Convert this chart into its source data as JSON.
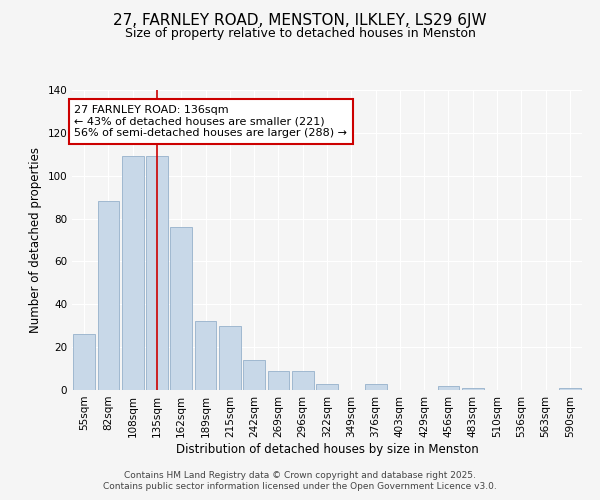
{
  "title": "27, FARNLEY ROAD, MENSTON, ILKLEY, LS29 6JW",
  "subtitle": "Size of property relative to detached houses in Menston",
  "xlabel": "Distribution of detached houses by size in Menston",
  "ylabel": "Number of detached properties",
  "bar_color": "#c8d8e8",
  "bar_edgecolor": "#a0b8d0",
  "categories": [
    "55sqm",
    "82sqm",
    "108sqm",
    "135sqm",
    "162sqm",
    "189sqm",
    "215sqm",
    "242sqm",
    "269sqm",
    "296sqm",
    "322sqm",
    "349sqm",
    "376sqm",
    "403sqm",
    "429sqm",
    "456sqm",
    "483sqm",
    "510sqm",
    "536sqm",
    "563sqm",
    "590sqm"
  ],
  "values": [
    26,
    88,
    109,
    109,
    76,
    32,
    30,
    14,
    9,
    9,
    3,
    0,
    3,
    0,
    0,
    2,
    1,
    0,
    0,
    0,
    1
  ],
  "vline_bar_index": 3,
  "vline_color": "#cc0000",
  "annotation_text": "27 FARNLEY ROAD: 136sqm\n← 43% of detached houses are smaller (221)\n56% of semi-detached houses are larger (288) →",
  "annotation_box_edgecolor": "#cc0000",
  "ylim": [
    0,
    140
  ],
  "yticks": [
    0,
    20,
    40,
    60,
    80,
    100,
    120,
    140
  ],
  "footer1": "Contains HM Land Registry data © Crown copyright and database right 2025.",
  "footer2": "Contains public sector information licensed under the Open Government Licence v3.0.",
  "background_color": "#f5f5f5",
  "title_fontsize": 11,
  "subtitle_fontsize": 9,
  "axis_label_fontsize": 8.5,
  "tick_fontsize": 7.5,
  "annotation_fontsize": 8,
  "footer_fontsize": 6.5
}
